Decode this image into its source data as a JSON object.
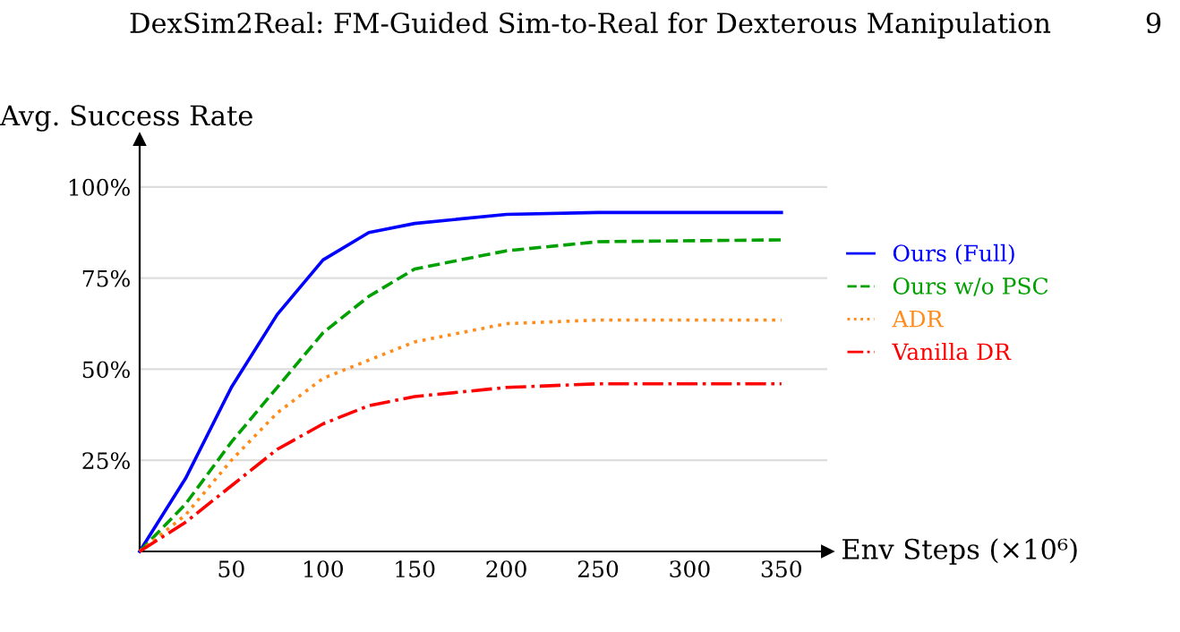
{
  "chart_data": {
    "type": "line",
    "xlabel": "Env Steps (×10⁶)",
    "ylabel": "Avg. Success Rate",
    "annotations": [
      "DexSim2Real: FM-Guided Sim-to-Real for Dexterous Manipulation",
      "9"
    ],
    "xlim": [
      0,
      375
    ],
    "ylim": [
      0,
      113
    ],
    "xticks": [
      50,
      100,
      150,
      200,
      250,
      300,
      350
    ],
    "yticks": [
      {
        "value": 25,
        "label": "25%"
      },
      {
        "value": 50,
        "label": "50%"
      },
      {
        "value": 75,
        "label": "75%"
      },
      {
        "value": 100,
        "label": "100%"
      }
    ],
    "grid": "y",
    "legend": "right",
    "marker": "none",
    "x": [
      0,
      25,
      50,
      75,
      100,
      125,
      150,
      200,
      250,
      350
    ],
    "series": [
      {
        "name": "Ours (Full)",
        "color": "#0000ff",
        "line_style": "solid",
        "values": [
          0,
          20,
          45,
          65,
          80,
          87.5,
          90,
          92.5,
          93,
          93
        ]
      },
      {
        "name": "Ours w/o PSC",
        "color": "#00a000",
        "line_style": "dashed",
        "values": [
          0,
          13,
          30,
          45,
          60,
          70,
          77.5,
          82.5,
          85,
          85.5
        ]
      },
      {
        "name": "ADR",
        "color": "#ff8c1a",
        "line_style": "dotted",
        "values": [
          0,
          10,
          25,
          38,
          47.5,
          52.5,
          57.5,
          62.5,
          63.5,
          63.5
        ]
      },
      {
        "name": "Vanilla DR",
        "color": "#ff0000",
        "line_style": "dashdot",
        "values": [
          0,
          8,
          18,
          28,
          35,
          40,
          42.5,
          45,
          46,
          46
        ]
      }
    ]
  }
}
